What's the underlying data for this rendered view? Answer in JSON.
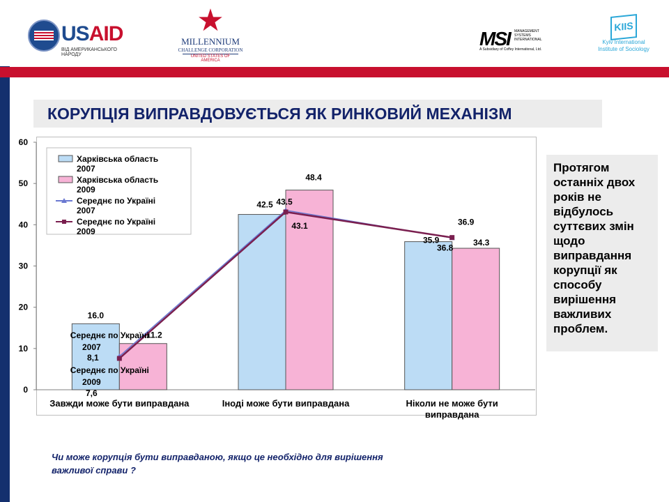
{
  "logos": {
    "usaid": {
      "word_a": "US",
      "word_b": "AID",
      "sub": "ВІД АМЕРИКАНСЬКОГО НАРОДУ"
    },
    "mcc": {
      "line1": "MILLENNIUM",
      "line2": "CHALLENGE CORPORATION",
      "line3": "UNITED STATES OF AMERICA"
    },
    "msi": {
      "mark": "MSI",
      "side": "MANAGEMENT SYSTEMS INTERNATIONAL",
      "sub": "A Subsidiary of Coffey International, Ltd."
    },
    "kiis": {
      "mark": "KIIS",
      "line1": "Kyiv International",
      "line2": "Institute of Sociology"
    }
  },
  "title": "КОРУПЦІЯ ВИПРАВДОВУЄТЬСЯ ЯК РИНКОВИЙ МЕХАНІЗМ",
  "note": "Протягом останніх двох років не відбулось суттєвих змін щодо виправдання корупції як способу вирішення важливих проблем.",
  "question": "Чи може корупція бути виправданою, якщо це необхідно для вирішення важливої справи ?",
  "colors": {
    "bar_2007": "#bcdcf5",
    "bar_2009": "#f7b3d6",
    "line_2007": "#6a78d1",
    "line_2009": "#7a1f4f",
    "sidebar": "#14306e",
    "topbar": "#c8102e"
  },
  "chart_data": {
    "type": "bar",
    "categories": [
      "Завжди може бути виправдана",
      "Іноді може бути виправдана",
      "Ніколи не може бути виправдана"
    ],
    "series": [
      {
        "name": "Харківська область 2007",
        "kind": "bar",
        "values": [
          16.0,
          42.5,
          35.9
        ],
        "labels": [
          "16.0",
          "42.5",
          "35.9"
        ]
      },
      {
        "name": "Харківська область 2009",
        "kind": "bar",
        "values": [
          11.2,
          48.4,
          34.3
        ],
        "labels": [
          "11.2",
          "48.4",
          "34.3"
        ]
      },
      {
        "name": "Середнє по Україні 2007",
        "kind": "line",
        "values": [
          8.1,
          43.5,
          36.8
        ],
        "labels": [
          "Середнє по Україні 2007 8,1",
          "43.5",
          "36.8"
        ]
      },
      {
        "name": "Середнє по Україні 2009",
        "kind": "line",
        "values": [
          7.6,
          43.1,
          36.9
        ],
        "labels": [
          "Середнє по Україні 2009 7,6",
          "43.1",
          "36.9"
        ]
      }
    ],
    "yticks": [
      "0",
      "10",
      "20",
      "30",
      "40",
      "50",
      "60"
    ],
    "ylim": [
      0,
      60
    ],
    "grid": false,
    "legend": "top-left"
  }
}
